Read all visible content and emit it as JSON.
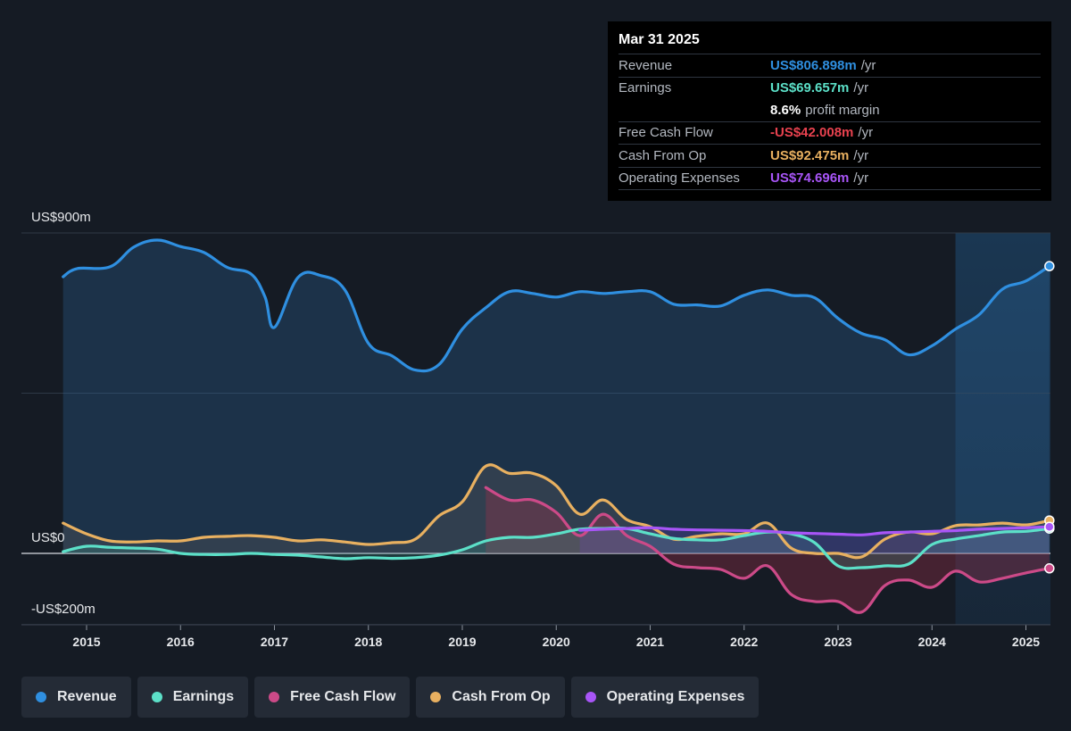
{
  "tooltip": {
    "date": "Mar 31 2025",
    "rows": [
      {
        "label": "Revenue",
        "value": "US$806.898m",
        "unit": "/yr",
        "color": "#2f8fe0"
      },
      {
        "label": "Earnings",
        "value": "US$69.657m",
        "unit": "/yr",
        "color": "#5ce0c8"
      },
      {
        "label": "",
        "value": "8.6%",
        "unit": "profit margin",
        "color": "#ffffff"
      },
      {
        "label": "Free Cash Flow",
        "value": "-US$42.008m",
        "unit": "/yr",
        "color": "#e8424f"
      },
      {
        "label": "Cash From Op",
        "value": "US$92.475m",
        "unit": "/yr",
        "color": "#e8b060"
      },
      {
        "label": "Operating Expenses",
        "value": "US$74.696m",
        "unit": "/yr",
        "color": "#a855f7"
      }
    ]
  },
  "legend": [
    {
      "label": "Revenue",
      "color": "#2f8fe0"
    },
    {
      "label": "Earnings",
      "color": "#5ce0c8"
    },
    {
      "label": "Free Cash Flow",
      "color": "#cc4a88"
    },
    {
      "label": "Cash From Op",
      "color": "#e8b060"
    },
    {
      "label": "Operating Expenses",
      "color": "#a855f7"
    }
  ],
  "chart_data": {
    "type": "line",
    "ylim": [
      -200,
      900
    ],
    "y_tick_labels": [
      {
        "value": 900,
        "label": "US$900m"
      },
      {
        "value": 0,
        "label": "US$0"
      },
      {
        "value": -200,
        "label": "-US$200m"
      }
    ],
    "xlim": [
      2014.4,
      2025.25
    ],
    "x_ticks": [
      2015,
      2016,
      2017,
      2018,
      2019,
      2020,
      2021,
      2022,
      2023,
      2024,
      2025
    ],
    "forecast_start": 2024.25,
    "grid": true,
    "legend_position": "bottom",
    "series": [
      {
        "name": "Revenue",
        "color": "#2f8fe0",
        "fill": true,
        "points": [
          [
            2014.75,
            777
          ],
          [
            2014.9,
            800
          ],
          [
            2015.25,
            805
          ],
          [
            2015.5,
            860
          ],
          [
            2015.75,
            880
          ],
          [
            2016.0,
            862
          ],
          [
            2016.25,
            845
          ],
          [
            2016.5,
            803
          ],
          [
            2016.75,
            785
          ],
          [
            2016.9,
            720
          ],
          [
            2017.0,
            635
          ],
          [
            2017.25,
            775
          ],
          [
            2017.5,
            780
          ],
          [
            2017.75,
            740
          ],
          [
            2018.0,
            590
          ],
          [
            2018.25,
            555
          ],
          [
            2018.5,
            515
          ],
          [
            2018.75,
            530
          ],
          [
            2019.0,
            630
          ],
          [
            2019.25,
            690
          ],
          [
            2019.5,
            735
          ],
          [
            2019.75,
            730
          ],
          [
            2020.0,
            720
          ],
          [
            2020.25,
            735
          ],
          [
            2020.5,
            730
          ],
          [
            2020.75,
            735
          ],
          [
            2021.0,
            735
          ],
          [
            2021.25,
            700
          ],
          [
            2021.5,
            698
          ],
          [
            2021.75,
            695
          ],
          [
            2022.0,
            725
          ],
          [
            2022.25,
            740
          ],
          [
            2022.5,
            725
          ],
          [
            2022.75,
            718
          ],
          [
            2023.0,
            660
          ],
          [
            2023.25,
            618
          ],
          [
            2023.5,
            600
          ],
          [
            2023.75,
            558
          ],
          [
            2024.0,
            583
          ],
          [
            2024.25,
            630
          ],
          [
            2024.5,
            670
          ],
          [
            2024.75,
            742
          ],
          [
            2025.0,
            765
          ],
          [
            2025.25,
            806.898
          ]
        ]
      },
      {
        "name": "Earnings",
        "color": "#5ce0c8",
        "fill": true,
        "points": [
          [
            2014.75,
            5
          ],
          [
            2015.0,
            20
          ],
          [
            2015.25,
            17
          ],
          [
            2015.5,
            15
          ],
          [
            2015.75,
            12
          ],
          [
            2016.0,
            0
          ],
          [
            2016.25,
            -3
          ],
          [
            2016.5,
            -3
          ],
          [
            2016.75,
            0
          ],
          [
            2017.0,
            -3
          ],
          [
            2017.25,
            -5
          ],
          [
            2017.5,
            -10
          ],
          [
            2017.75,
            -15
          ],
          [
            2018.0,
            -12
          ],
          [
            2018.25,
            -14
          ],
          [
            2018.5,
            -12
          ],
          [
            2018.75,
            -5
          ],
          [
            2019.0,
            10
          ],
          [
            2019.25,
            35
          ],
          [
            2019.5,
            45
          ],
          [
            2019.75,
            45
          ],
          [
            2020.0,
            55
          ],
          [
            2020.25,
            68
          ],
          [
            2020.5,
            70
          ],
          [
            2020.75,
            70
          ],
          [
            2021.0,
            55
          ],
          [
            2021.25,
            42
          ],
          [
            2021.5,
            38
          ],
          [
            2021.75,
            38
          ],
          [
            2022.0,
            50
          ],
          [
            2022.25,
            60
          ],
          [
            2022.5,
            55
          ],
          [
            2022.75,
            30
          ],
          [
            2023.0,
            -35
          ],
          [
            2023.25,
            -40
          ],
          [
            2023.5,
            -35
          ],
          [
            2023.75,
            -30
          ],
          [
            2024.0,
            25
          ],
          [
            2024.25,
            40
          ],
          [
            2024.5,
            50
          ],
          [
            2024.75,
            60
          ],
          [
            2025.0,
            62
          ],
          [
            2025.25,
            69.657
          ]
        ]
      },
      {
        "name": "Free Cash Flow",
        "color": "#cc4a88",
        "fill": true,
        "points": [
          [
            2019.25,
            185
          ],
          [
            2019.5,
            150
          ],
          [
            2019.75,
            150
          ],
          [
            2020.0,
            115
          ],
          [
            2020.25,
            50
          ],
          [
            2020.5,
            110
          ],
          [
            2020.75,
            50
          ],
          [
            2021.0,
            20
          ],
          [
            2021.25,
            -30
          ],
          [
            2021.5,
            -40
          ],
          [
            2021.75,
            -45
          ],
          [
            2022.0,
            -70
          ],
          [
            2022.25,
            -35
          ],
          [
            2022.5,
            -115
          ],
          [
            2022.75,
            -135
          ],
          [
            2023.0,
            -135
          ],
          [
            2023.25,
            -165
          ],
          [
            2023.5,
            -90
          ],
          [
            2023.75,
            -75
          ],
          [
            2024.0,
            -95
          ],
          [
            2024.25,
            -50
          ],
          [
            2024.5,
            -80
          ],
          [
            2024.75,
            -70
          ],
          [
            2025.0,
            -55
          ],
          [
            2025.25,
            -42.008
          ]
        ]
      },
      {
        "name": "Cash From Op",
        "color": "#e8b060",
        "fill": true,
        "points": [
          [
            2014.75,
            85
          ],
          [
            2015.0,
            55
          ],
          [
            2015.25,
            35
          ],
          [
            2015.5,
            32
          ],
          [
            2015.75,
            35
          ],
          [
            2016.0,
            35
          ],
          [
            2016.25,
            45
          ],
          [
            2016.5,
            48
          ],
          [
            2016.75,
            50
          ],
          [
            2017.0,
            45
          ],
          [
            2017.25,
            35
          ],
          [
            2017.5,
            38
          ],
          [
            2017.75,
            32
          ],
          [
            2018.0,
            25
          ],
          [
            2018.25,
            30
          ],
          [
            2018.5,
            40
          ],
          [
            2018.75,
            105
          ],
          [
            2019.0,
            145
          ],
          [
            2019.25,
            245
          ],
          [
            2019.5,
            225
          ],
          [
            2019.75,
            225
          ],
          [
            2020.0,
            190
          ],
          [
            2020.25,
            110
          ],
          [
            2020.5,
            150
          ],
          [
            2020.75,
            95
          ],
          [
            2021.0,
            75
          ],
          [
            2021.25,
            40
          ],
          [
            2021.5,
            48
          ],
          [
            2021.75,
            55
          ],
          [
            2022.0,
            55
          ],
          [
            2022.25,
            85
          ],
          [
            2022.5,
            15
          ],
          [
            2022.75,
            0
          ],
          [
            2023.0,
            0
          ],
          [
            2023.25,
            -10
          ],
          [
            2023.5,
            40
          ],
          [
            2023.75,
            60
          ],
          [
            2024.0,
            55
          ],
          [
            2024.25,
            78
          ],
          [
            2024.5,
            80
          ],
          [
            2024.75,
            85
          ],
          [
            2025.0,
            80
          ],
          [
            2025.25,
            92.475
          ]
        ]
      },
      {
        "name": "Operating Expenses",
        "color": "#a855f7",
        "fill": true,
        "points": [
          [
            2020.25,
            65
          ],
          [
            2020.5,
            68
          ],
          [
            2020.75,
            70
          ],
          [
            2021.0,
            72
          ],
          [
            2021.25,
            68
          ],
          [
            2021.5,
            66
          ],
          [
            2021.75,
            65
          ],
          [
            2022.0,
            64
          ],
          [
            2022.25,
            62
          ],
          [
            2022.5,
            58
          ],
          [
            2022.75,
            56
          ],
          [
            2023.0,
            54
          ],
          [
            2023.25,
            52
          ],
          [
            2023.5,
            58
          ],
          [
            2023.75,
            60
          ],
          [
            2024.0,
            62
          ],
          [
            2024.25,
            64
          ],
          [
            2024.5,
            68
          ],
          [
            2024.75,
            70
          ],
          [
            2025.0,
            72
          ],
          [
            2025.25,
            74.696
          ]
        ]
      }
    ]
  }
}
